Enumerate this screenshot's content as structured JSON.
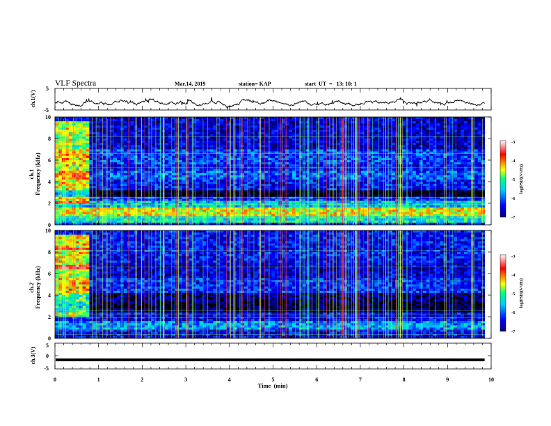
{
  "header": {
    "title": "VLF Spectra",
    "date": "Mar.14, 2019",
    "station": "station= KAP",
    "start": "start  UT  =   13: 10: 1"
  },
  "colorbar_ticks": [
    "-3",
    "-4",
    "-5",
    "-6",
    "-7"
  ],
  "colorbar_label": "log(PSD)(V²/Hz)",
  "colors": {
    "trace": "#000000",
    "cmap": [
      "#000000",
      "#000080",
      "#0000ff",
      "#00c8ff",
      "#00ff80",
      "#ffff00",
      "#ff0000",
      "#ffffff"
    ]
  },
  "chart_data": [
    {
      "type": "line",
      "panel": "ch1_waveform",
      "ylabel": "ch.1(V)",
      "ylim": [
        -5,
        5
      ],
      "yticks": [
        "5",
        "-5"
      ],
      "x_range": [
        0,
        10
      ],
      "x_end_of_data": 9.85,
      "baseline": -1.5,
      "amplitude": 1.3
    },
    {
      "type": "heatmap",
      "panel": "ch1_spectrogram",
      "ylabel": "ch.1\nFrequency  (kHz)",
      "ylim": [
        0,
        10
      ],
      "yticks": [
        "0",
        "2",
        "4",
        "6",
        "8",
        "10"
      ],
      "x_range": [
        0,
        10
      ],
      "x_end_of_data": 9.85,
      "clim": [
        -7,
        -3
      ],
      "early_burst_end_min": 0.75,
      "bands": [
        {
          "from": 0,
          "to": 0.3,
          "level": -6.0
        },
        {
          "from": 0.3,
          "to": 0.8,
          "level": -5.2
        },
        {
          "from": 0.8,
          "to": 1.7,
          "level": -4.5
        },
        {
          "from": 1.7,
          "to": 2.3,
          "level": -5.4
        },
        {
          "from": 2.3,
          "to": 2.7,
          "level": -6.0
        },
        {
          "from": 2.7,
          "to": 3.3,
          "level": -6.9
        },
        {
          "from": 3.3,
          "to": 4.3,
          "level": -6.1
        },
        {
          "from": 4.3,
          "to": 5.0,
          "level": -5.8
        },
        {
          "from": 5.0,
          "to": 5.6,
          "level": -6.1
        },
        {
          "from": 5.6,
          "to": 7.0,
          "level": -5.9
        },
        {
          "from": 7.0,
          "to": 10.0,
          "level": -6.3
        }
      ]
    },
    {
      "type": "heatmap",
      "panel": "ch2_spectrogram",
      "ylabel": "ch.2\nFrequency  (kHz)",
      "ylim": [
        0,
        10
      ],
      "yticks": [
        "0",
        "2",
        "4",
        "6",
        "8",
        "10"
      ],
      "x_range": [
        0,
        10
      ],
      "x_end_of_data": 9.85,
      "clim": [
        -7,
        -3
      ],
      "early_burst_end_min": 0.75,
      "bands": [
        {
          "from": 0,
          "to": 0.8,
          "level": -6.2
        },
        {
          "from": 0.8,
          "to": 1.6,
          "level": -5.6
        },
        {
          "from": 1.6,
          "to": 2.4,
          "level": -6.2
        },
        {
          "from": 2.4,
          "to": 3.4,
          "level": -6.8
        },
        {
          "from": 3.4,
          "to": 4.2,
          "level": -6.6
        },
        {
          "from": 4.2,
          "to": 5.6,
          "level": -6.0
        },
        {
          "from": 5.6,
          "to": 7.0,
          "level": -6.3
        },
        {
          "from": 7.0,
          "to": 10.0,
          "level": -6.1
        }
      ]
    },
    {
      "type": "line",
      "panel": "ch3_waveform",
      "ylabel": "ch.3(V)",
      "ylim": [
        -5,
        5
      ],
      "yticks": [
        "5",
        "0",
        "-5"
      ],
      "x_range": [
        0,
        10
      ],
      "x_end_of_data": 9.85,
      "constant_value": -1.5,
      "xlabel": "Time  (min)",
      "xticks": [
        "0",
        "1",
        "2",
        "3",
        "4",
        "5",
        "6",
        "7",
        "8",
        "9",
        "10"
      ]
    }
  ]
}
